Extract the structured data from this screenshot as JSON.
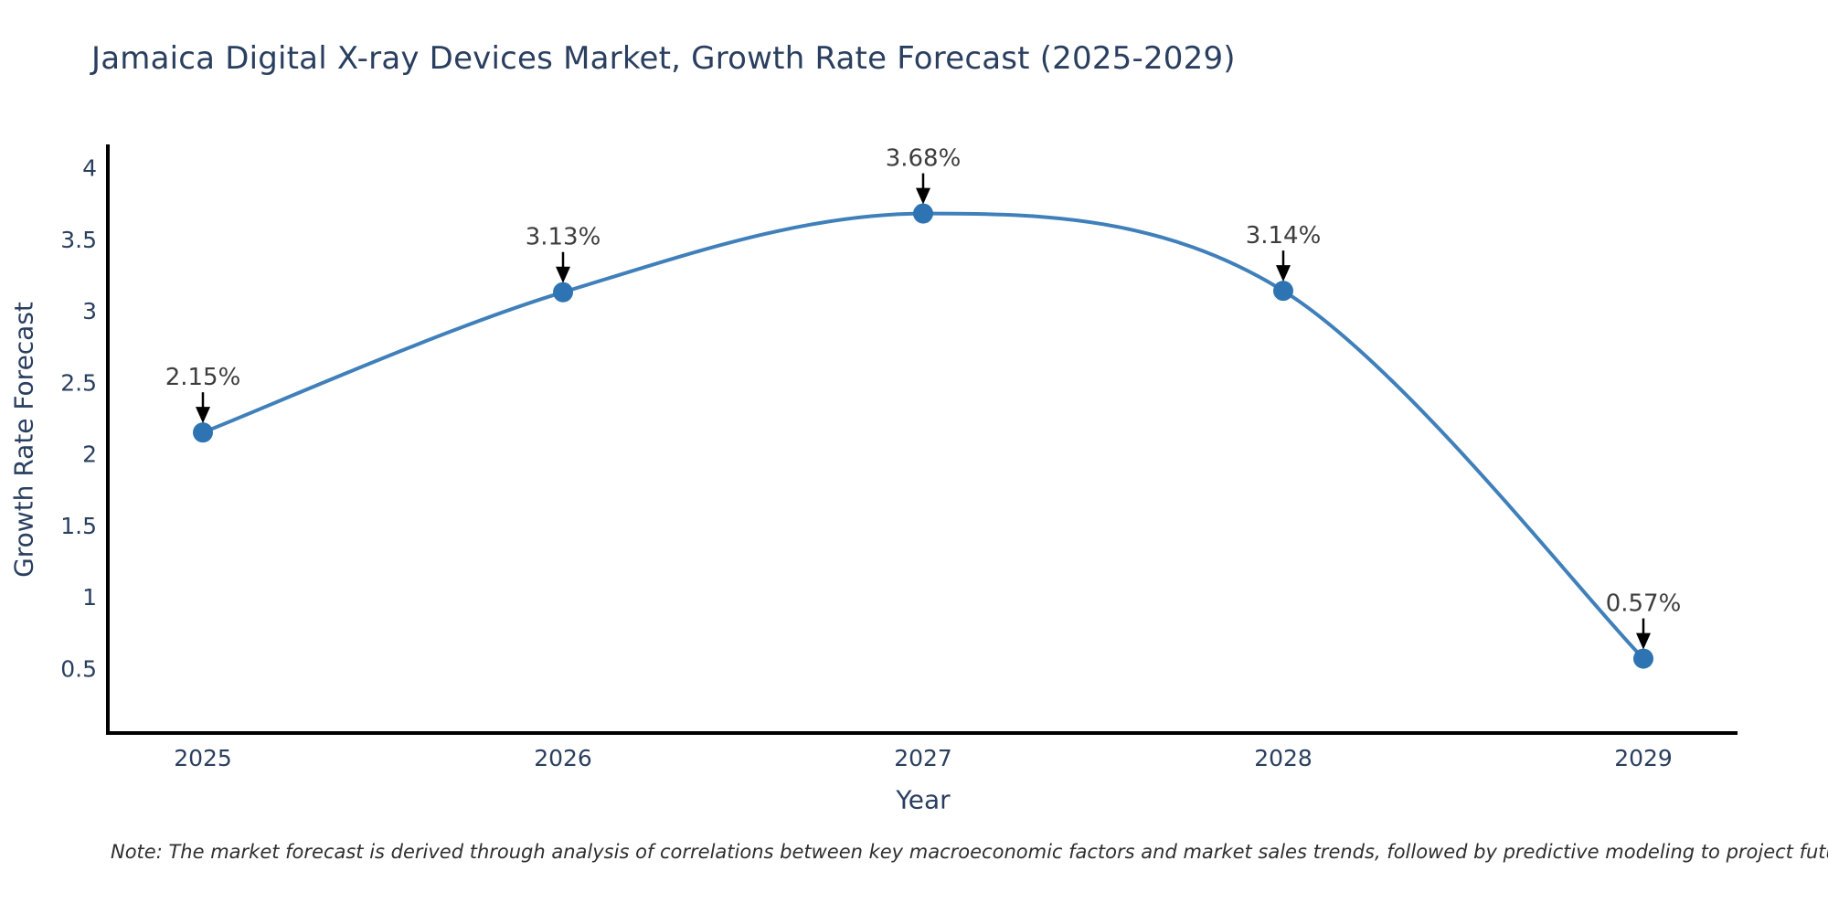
{
  "note": "Note: The market forecast is derived through analysis of correlations between key macroeconomic factors and market sales trends, followed by predictive modeling to project future sales",
  "chart_data": {
    "type": "line",
    "title": "Jamaica Digital X-ray Devices Market, Growth Rate Forecast (2025-2029)",
    "xlabel": "Year",
    "ylabel": "Growth Rate Forecast",
    "x": [
      2025,
      2026,
      2027,
      2028,
      2029
    ],
    "values": [
      2.15,
      3.13,
      3.68,
      3.14,
      0.57
    ],
    "point_labels": [
      "2.15%",
      "3.13%",
      "3.68%",
      "3.14%",
      "0.57%"
    ],
    "yticks": [
      0.5,
      1,
      1.5,
      2,
      2.5,
      3,
      3.5,
      4
    ],
    "ylim": [
      0.05,
      4.15
    ],
    "grid": false,
    "legend": "none",
    "curve": "smooth-spline",
    "colors": {
      "line": "#4080ba",
      "marker": "#2e74b2",
      "axis": "#000000",
      "title_text": "#2a3f5f",
      "tick_text": "#2a3f5f",
      "axis_label_text": "#2a3f5f",
      "annotation_text": "#3d3d3d",
      "arrow": "#000000",
      "background": "#ffffff"
    }
  }
}
